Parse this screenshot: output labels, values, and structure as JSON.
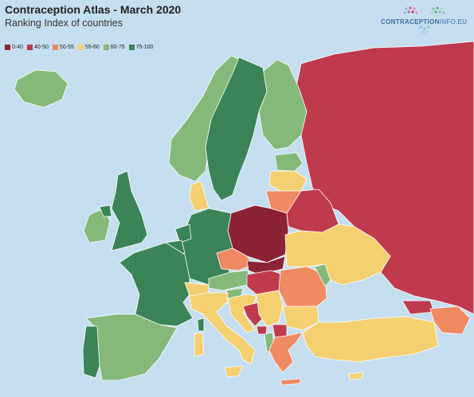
{
  "header": {
    "title": "Contraception Atlas - March 2020",
    "subtitle": "Ranking Index of countries"
  },
  "logo": {
    "text_bold": "CONTRACEPTION",
    "text_light": "INFO.EU"
  },
  "legend": [
    {
      "label": "0-40",
      "color": "#8b2334"
    },
    {
      "label": "40-50",
      "color": "#c03a4e"
    },
    {
      "label": "50-55",
      "color": "#f08a62"
    },
    {
      "label": "55-60",
      "color": "#f5d070"
    },
    {
      "label": "60-75",
      "color": "#85b97a"
    },
    {
      "label": "75-100",
      "color": "#3a8458"
    }
  ],
  "colors": {
    "sea": "#c5dff0",
    "band_0_40": "#8b2334",
    "band_40_50": "#c03a4e",
    "band_50_55": "#f08a62",
    "band_55_60": "#f5d070",
    "band_60_75": "#85b97a",
    "band_75_100": "#3a8458"
  }
}
